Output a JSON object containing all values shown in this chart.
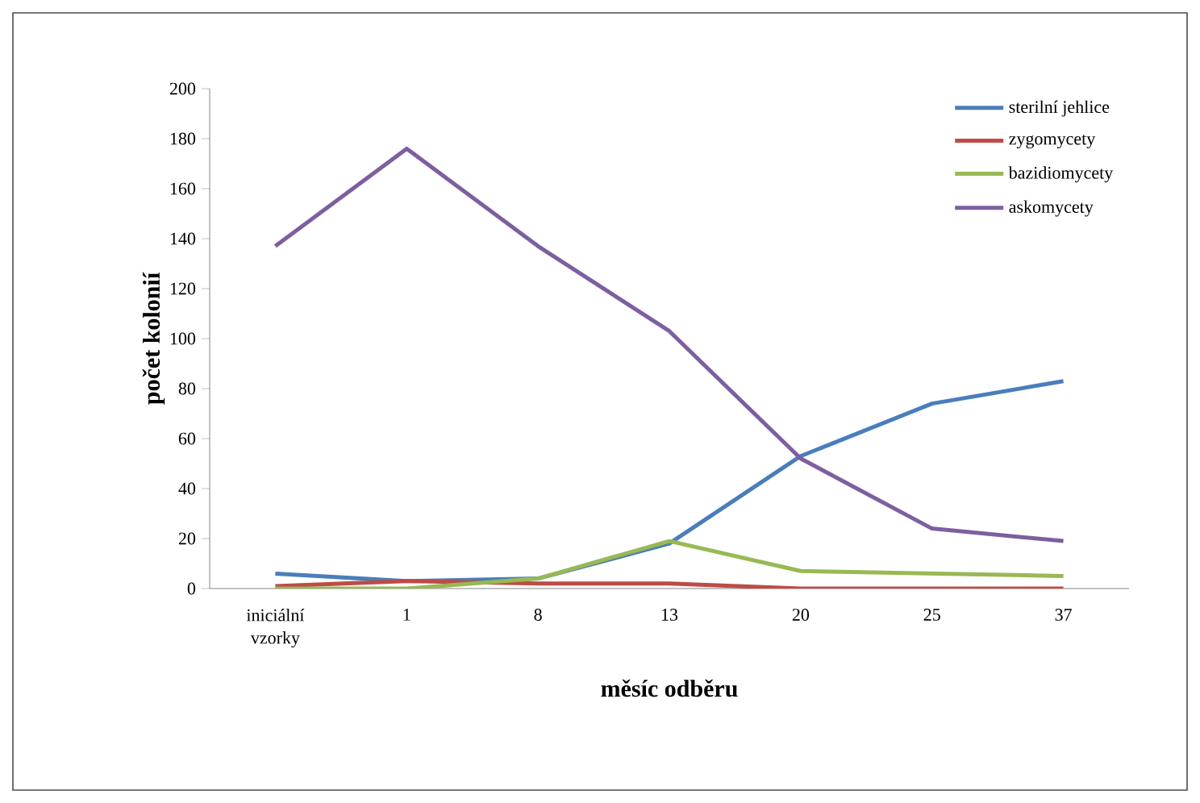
{
  "chart_data": {
    "type": "line",
    "xlabel": "měsíc odběru",
    "ylabel": "počet kolonií",
    "categories": [
      "iniciální vzorky",
      "1",
      "8",
      "13",
      "20",
      "25",
      "37"
    ],
    "series": [
      {
        "name": "sterilní jehlice",
        "color": "#4a7ebb",
        "values": [
          6,
          3,
          4,
          18,
          53,
          74,
          83
        ]
      },
      {
        "name": "zygomycety",
        "color": "#be4b48",
        "values": [
          1,
          3,
          2,
          2,
          0,
          0,
          0
        ]
      },
      {
        "name": "bazidiomycety",
        "color": "#98b954",
        "values": [
          0,
          0,
          4,
          19,
          7,
          6,
          5
        ]
      },
      {
        "name": "askomycety",
        "color": "#7d5fa0",
        "values": [
          137,
          176,
          137,
          103,
          52,
          24,
          19
        ]
      }
    ],
    "ylim": [
      0,
      200
    ],
    "yticks": [
      0,
      20,
      40,
      60,
      80,
      100,
      120,
      140,
      160,
      180,
      200
    ],
    "grid": false,
    "legend": "top right",
    "marker": "none",
    "line_style": "solid"
  }
}
